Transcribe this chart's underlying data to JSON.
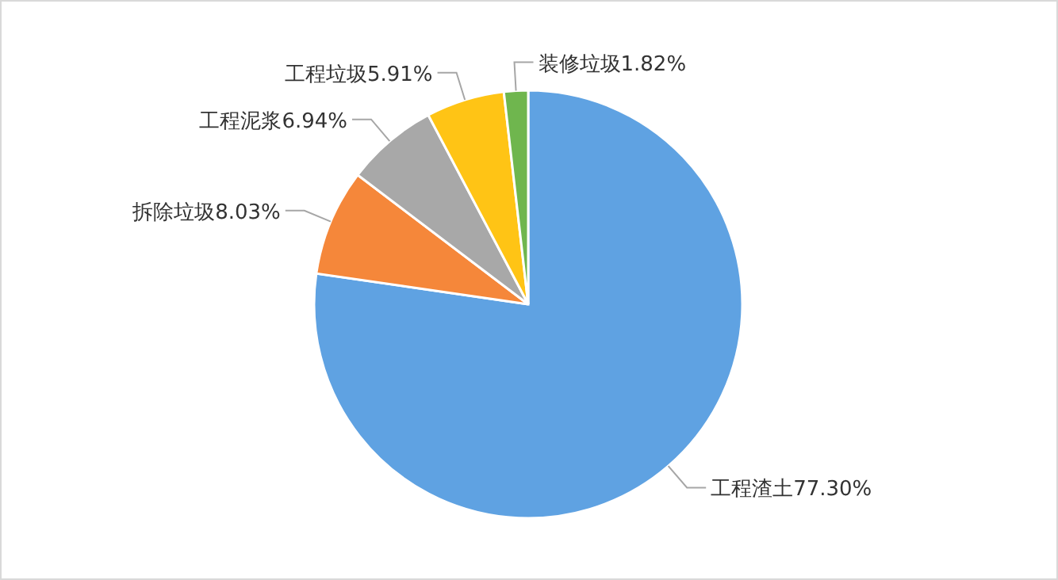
{
  "chart_data": {
    "type": "pie",
    "categories": [
      "工程渣土",
      "拆除垃圾",
      "工程泥浆",
      "工程垃圾",
      "装修垃圾"
    ],
    "values": [
      77.3,
      8.03,
      6.94,
      5.91,
      1.82
    ],
    "colors": [
      "#5fa2e2",
      "#f5873a",
      "#a8a8a8",
      "#ffc415",
      "#6fb64e"
    ],
    "value_labels": [
      "77.30%",
      "8.03%",
      "6.94%",
      "5.91%",
      "1.82%"
    ]
  }
}
